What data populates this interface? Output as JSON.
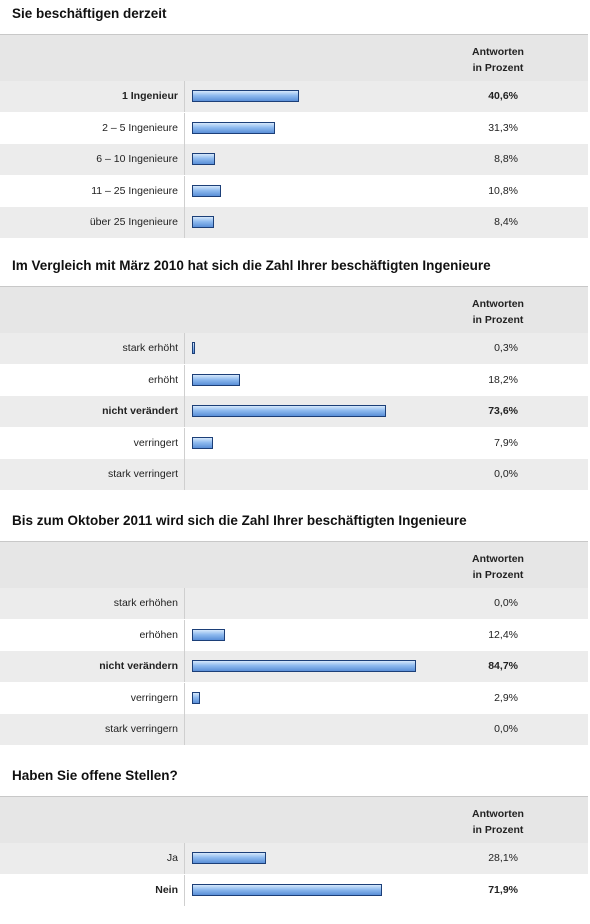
{
  "chart_data": [
    {
      "type": "bar",
      "title": "Sie beschäftigen derzeit",
      "header": "Antworten\nin Prozent",
      "categories": [
        "1 Ingenieur",
        "2 – 5 Ingenieure",
        "6 – 10 Ingenieure",
        "11 – 25 Ingenieure",
        "über 25 Ingenieure"
      ],
      "values": [
        40.6,
        31.3,
        8.8,
        10.8,
        8.4
      ],
      "value_labels": [
        "40,6%",
        "31,3%",
        "8,8%",
        "10,8%",
        "8,4%"
      ],
      "highlight_index": 0
    },
    {
      "type": "bar",
      "title": "Im Vergleich mit März 2010 hat sich die Zahl Ihrer beschäftigten Ingenieure",
      "header": "Antworten\nin Prozent",
      "categories": [
        "stark erhöht",
        "erhöht",
        "nicht verändert",
        "verringert",
        "stark verringert"
      ],
      "values": [
        0.3,
        18.2,
        73.6,
        7.9,
        0.0
      ],
      "value_labels": [
        "0,3%",
        "18,2%",
        "73,6%",
        "7,9%",
        "0,0%"
      ],
      "highlight_index": 2
    },
    {
      "type": "bar",
      "title": "Bis zum Oktober 2011 wird sich die Zahl Ihrer beschäftigten Ingenieure",
      "header": "Antworten\nin Prozent",
      "categories": [
        "stark erhöhen",
        "erhöhen",
        "nicht verändern",
        "verringern",
        "stark verringern"
      ],
      "values": [
        0.0,
        12.4,
        84.7,
        2.9,
        0.0
      ],
      "value_labels": [
        "0,0%",
        "12,4%",
        "84,7%",
        "2,9%",
        "0,0%"
      ],
      "highlight_index": 2
    },
    {
      "type": "bar",
      "title": "Haben Sie offene Stellen?",
      "header": "Antworten\nin Prozent",
      "categories": [
        "Ja",
        "Nein"
      ],
      "values": [
        28.1,
        71.9
      ],
      "value_labels": [
        "28,1%",
        "71,9%"
      ],
      "highlight_index": 1
    }
  ]
}
